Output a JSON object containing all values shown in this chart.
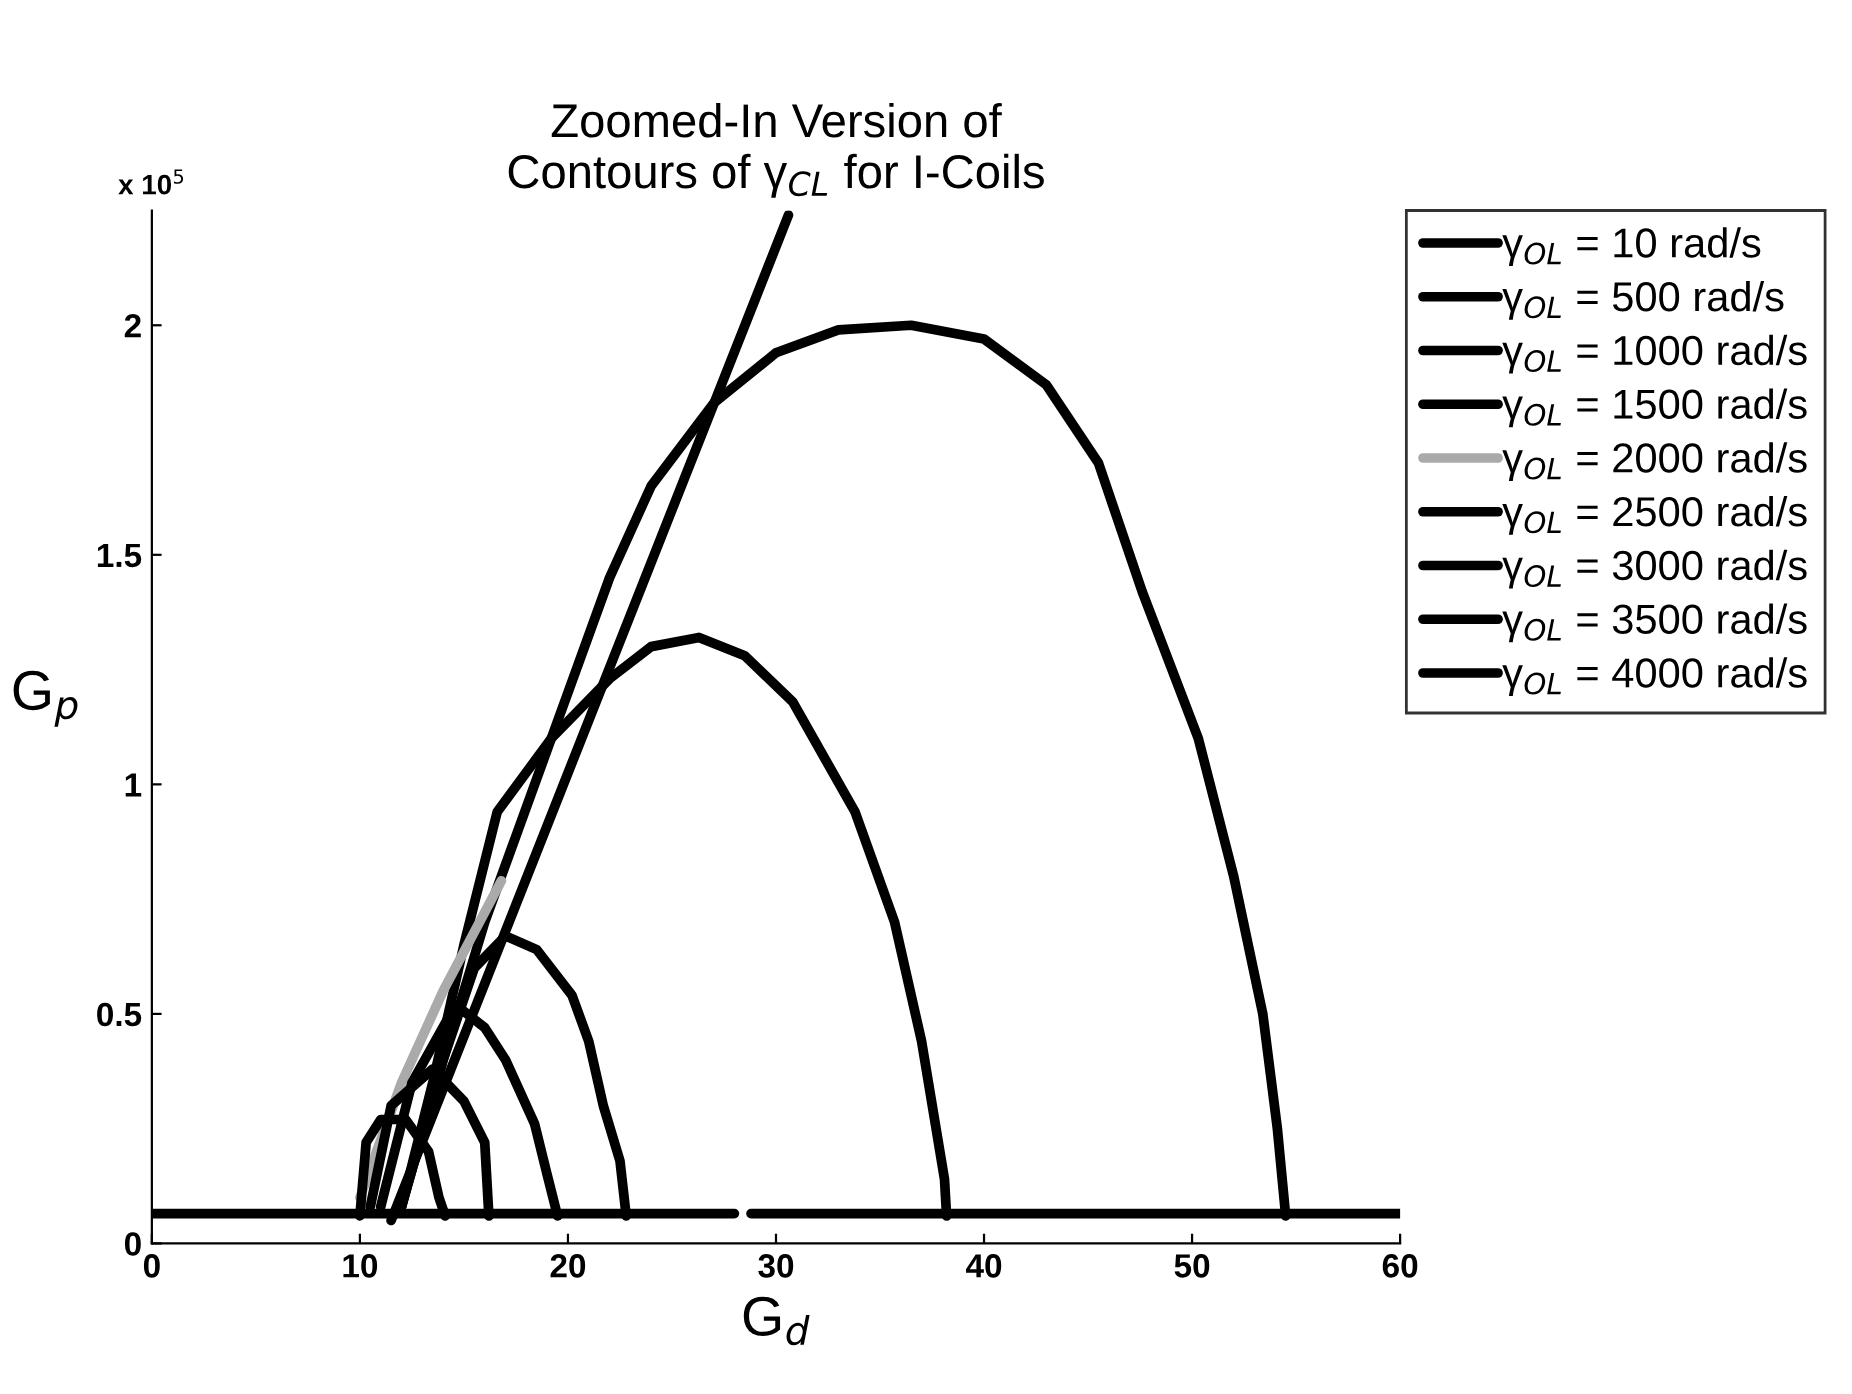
{
  "chart_data": {
    "type": "line",
    "title": "Zoomed-In Version of\nContours of γ$_{CL}$ for I-Coils",
    "xlabel": "G$_{d}$",
    "ylabel": "G$_{p}$",
    "annotations": [
      "x 10$^{5}$"
    ],
    "xlim": [
      0,
      60
    ],
    "xticks": [
      0,
      10,
      20,
      30,
      40,
      50,
      60
    ],
    "ylim": [
      0,
      2.25
    ],
    "yticks": [
      0,
      0.5,
      1,
      1.5,
      2
    ],
    "grid": false,
    "legend": "top right",
    "marker": "none",
    "line_style": "solid",
    "series": [
      {
        "name": "γ$_{OL}$ = 10 rad/s",
        "color": "#000000",
        "x": [
          0,
          28,
          28.4,
          28.8,
          60
        ],
        "values": [
          0.065,
          0.065,
          null,
          0.065,
          0.065
        ]
      },
      {
        "name": "γ$_{OL}$ = 500 rad/s",
        "color": "#000000",
        "x": [
          11.5,
          30.6
        ],
        "values": [
          0.05,
          2.24
        ]
      },
      {
        "name": "γ$_{OL}$ = 1000 rad/s",
        "color": "#000000",
        "x": [
          12,
          14,
          16,
          18,
          20,
          22,
          24,
          27,
          30,
          33,
          36.5,
          40,
          43,
          45.5,
          47.6,
          50.3,
          52,
          53.4,
          54.1,
          54.5
        ],
        "values": [
          0.08,
          0.4,
          0.7,
          0.95,
          1.2,
          1.45,
          1.65,
          1.83,
          1.94,
          1.99,
          2.0,
          1.97,
          1.87,
          1.7,
          1.42,
          1.1,
          0.8,
          0.5,
          0.25,
          0.06
        ]
      },
      {
        "name": "γ$_{OL}$ = 1500 rad/s",
        "color": "#000000",
        "x": [
          12,
          13.5,
          15,
          16.6,
          19.2,
          22,
          24,
          26.3,
          28.5,
          30.8,
          33.8,
          35.7,
          37,
          38.1,
          38.2
        ],
        "values": [
          0.08,
          0.35,
          0.65,
          0.94,
          1.1,
          1.23,
          1.3,
          1.32,
          1.28,
          1.18,
          0.94,
          0.7,
          0.44,
          0.14,
          0.06
        ]
      },
      {
        "name": "γ$_{OL}$ = 2000 rad/s",
        "color": "#aaaaaa",
        "x": [
          10,
          12,
          14,
          16.8
        ],
        "values": [
          0.1,
          0.35,
          0.55,
          0.79
        ]
      },
      {
        "name": "γ$_{OL}$ = 2500 rad/s",
        "color": "#000000",
        "x": [
          12,
          14,
          15.5,
          17,
          18.5,
          20.2,
          21,
          21.7,
          22.5,
          22.8
        ],
        "values": [
          0.08,
          0.4,
          0.6,
          0.67,
          0.64,
          0.54,
          0.44,
          0.3,
          0.18,
          0.06
        ]
      },
      {
        "name": "γ$_{OL}$ = 3000 rad/s",
        "color": "#000000",
        "x": [
          11,
          12.5,
          14.6,
          16,
          17,
          18.4,
          19,
          19.5
        ],
        "values": [
          0.08,
          0.35,
          0.52,
          0.47,
          0.4,
          0.26,
          0.15,
          0.06
        ]
      },
      {
        "name": "γ$_{OL}$ = 3500 rad/s",
        "color": "#000000",
        "x": [
          10.5,
          11.5,
          13.5,
          15,
          16,
          16.2
        ],
        "values": [
          0.08,
          0.3,
          0.38,
          0.31,
          0.22,
          0.06
        ]
      },
      {
        "name": "γ$_{OL}$ = 4000 rad/s",
        "color": "#000000",
        "x": [
          10,
          10.3,
          11,
          12.2,
          13.3,
          13.8,
          14.1
        ],
        "values": [
          0.06,
          0.22,
          0.27,
          0.27,
          0.2,
          0.1,
          0.06
        ]
      }
    ]
  }
}
